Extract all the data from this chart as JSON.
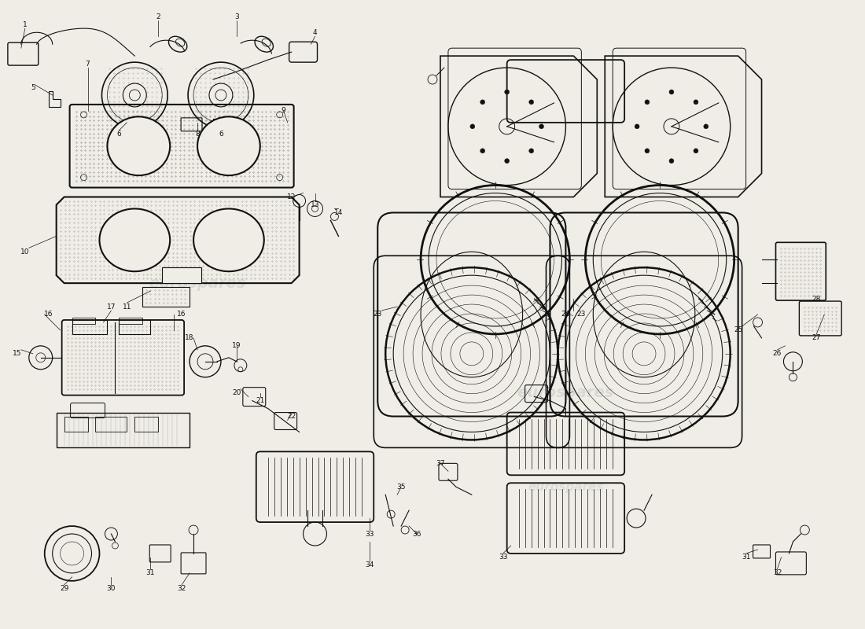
{
  "bg_color": "#f0ede6",
  "line_color": "#111111",
  "watermark_text1": "eurospares",
  "watermark_text2": "eurospares",
  "figsize": [
    11.0,
    8.0
  ],
  "dpi": 100,
  "xlim": [
    0,
    110
  ],
  "ylim": [
    0,
    80
  ]
}
